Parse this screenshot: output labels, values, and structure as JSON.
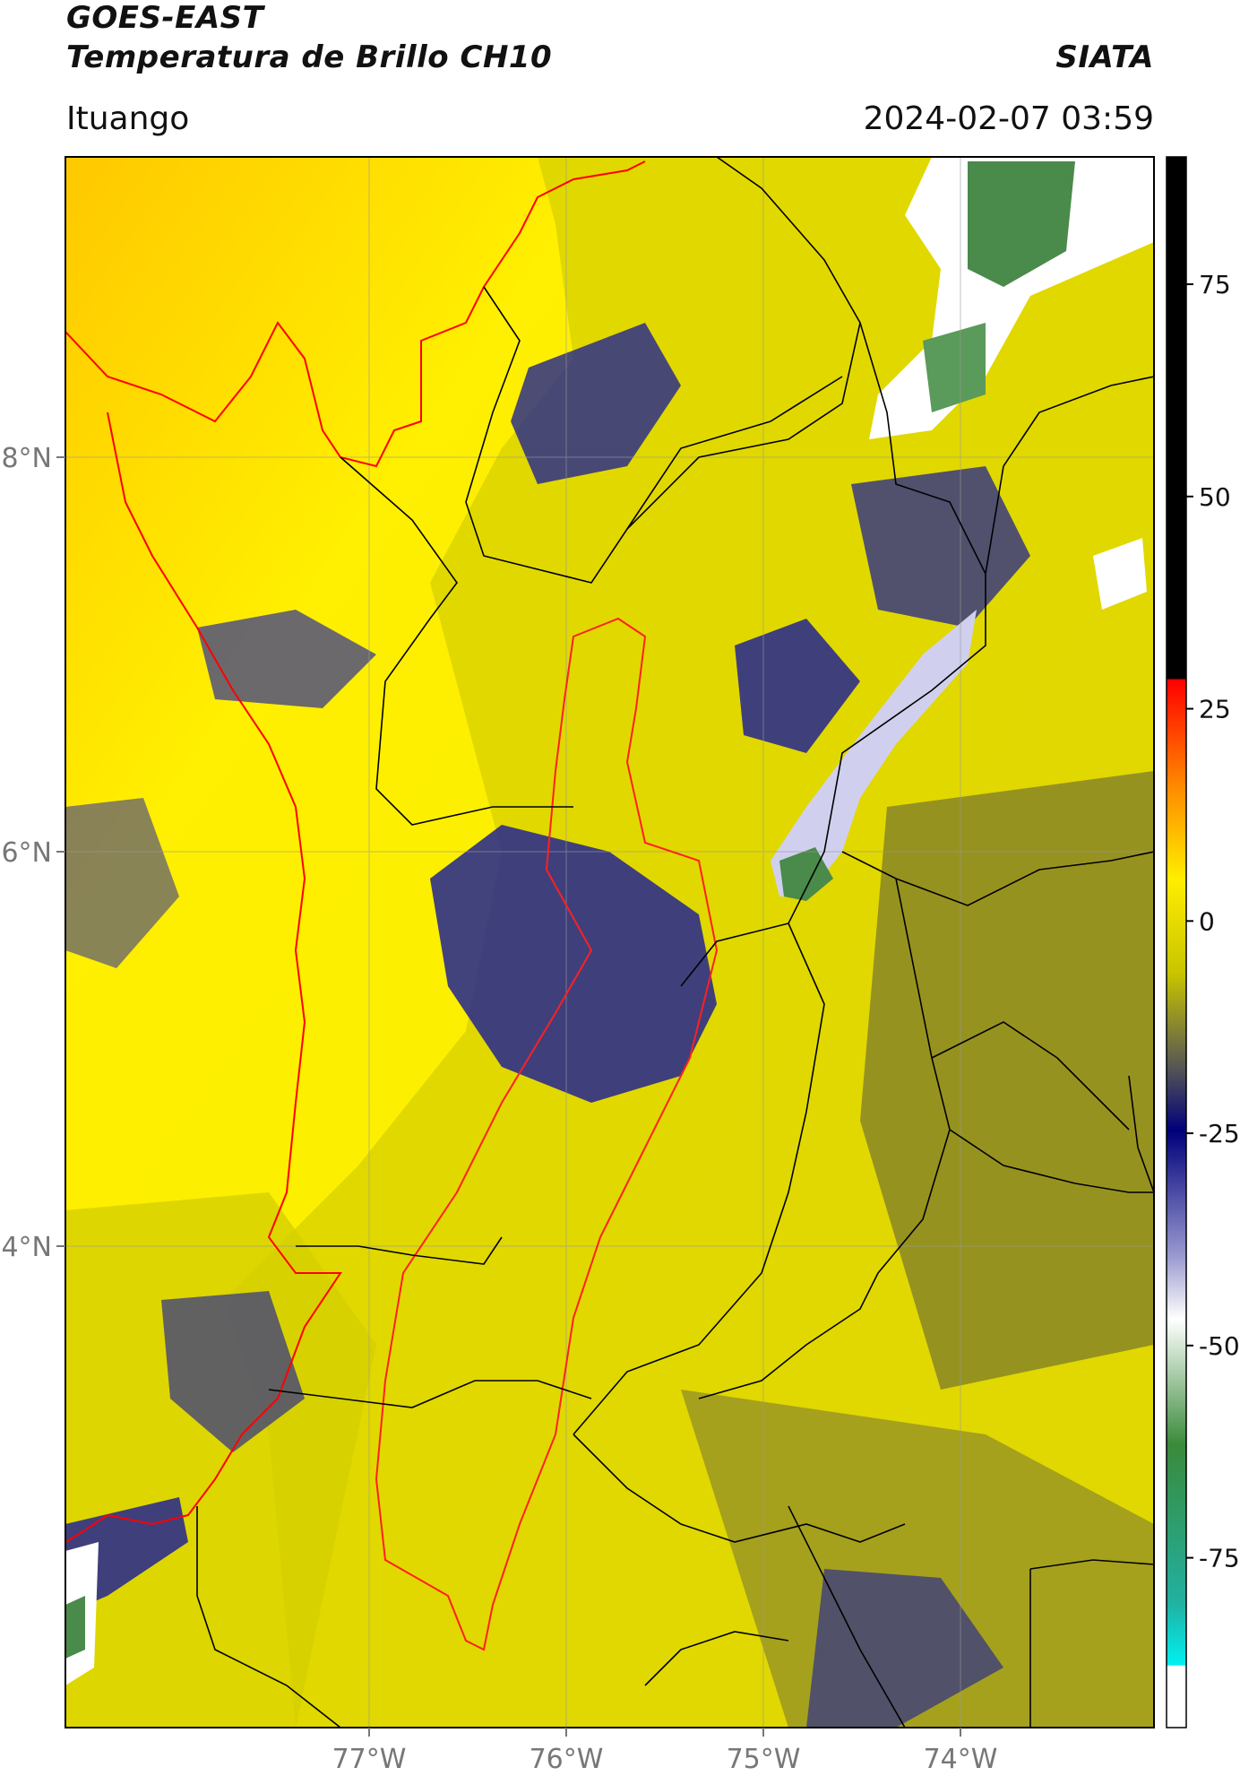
{
  "header": {
    "title_line1": "GOES-EAST",
    "title_line2": "Temperatura de Brillo CH10",
    "brand": "SIATA",
    "location": "Ituango",
    "datetime": "2024-02-07 03:59"
  },
  "map": {
    "lon_labels": [
      "77°W",
      "76°W",
      "75°W",
      "74°W"
    ],
    "lat_labels": [
      "8°N",
      "6°N",
      "4°N"
    ],
    "colors": {
      "warm": "#ffef00",
      "mid": "#d9d400",
      "cold": "#2d2f8a",
      "very_cold": "#ffffff",
      "coldest": "#3a8a3a",
      "coast": "#ff0000",
      "border": "#000000"
    }
  },
  "colorbar": {
    "tick_labels": [
      "75",
      "50",
      "25",
      "0",
      "-25",
      "-50",
      "-75"
    ],
    "ticks": [
      75,
      50,
      25,
      0,
      -25,
      -50,
      -75
    ],
    "range": [
      -95,
      90
    ]
  }
}
